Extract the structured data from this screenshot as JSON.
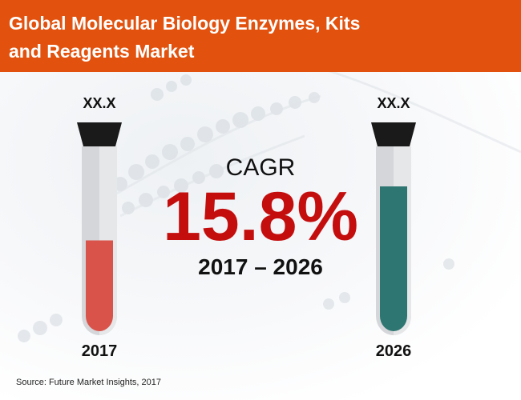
{
  "title": {
    "line1": "Global Molecular Biology Enzymes, Kits",
    "line2": "and Reagents Market"
  },
  "left_tube": {
    "value_label": "XX.X",
    "year": "2017",
    "liquid_color": "#d9534a",
    "liquid_level": 0.5
  },
  "right_tube": {
    "value_label": "XX.X",
    "year": "2026",
    "liquid_color": "#2e7672",
    "liquid_level": 0.8
  },
  "cagr": {
    "label": "CAGR",
    "value": "15.8%",
    "period": "2017 – 2026"
  },
  "source": "Source: Future Market Insights, 2017",
  "colors": {
    "header": "#e2520e",
    "cagr_value": "#c40e0e",
    "cap": "#1a1a1a"
  }
}
